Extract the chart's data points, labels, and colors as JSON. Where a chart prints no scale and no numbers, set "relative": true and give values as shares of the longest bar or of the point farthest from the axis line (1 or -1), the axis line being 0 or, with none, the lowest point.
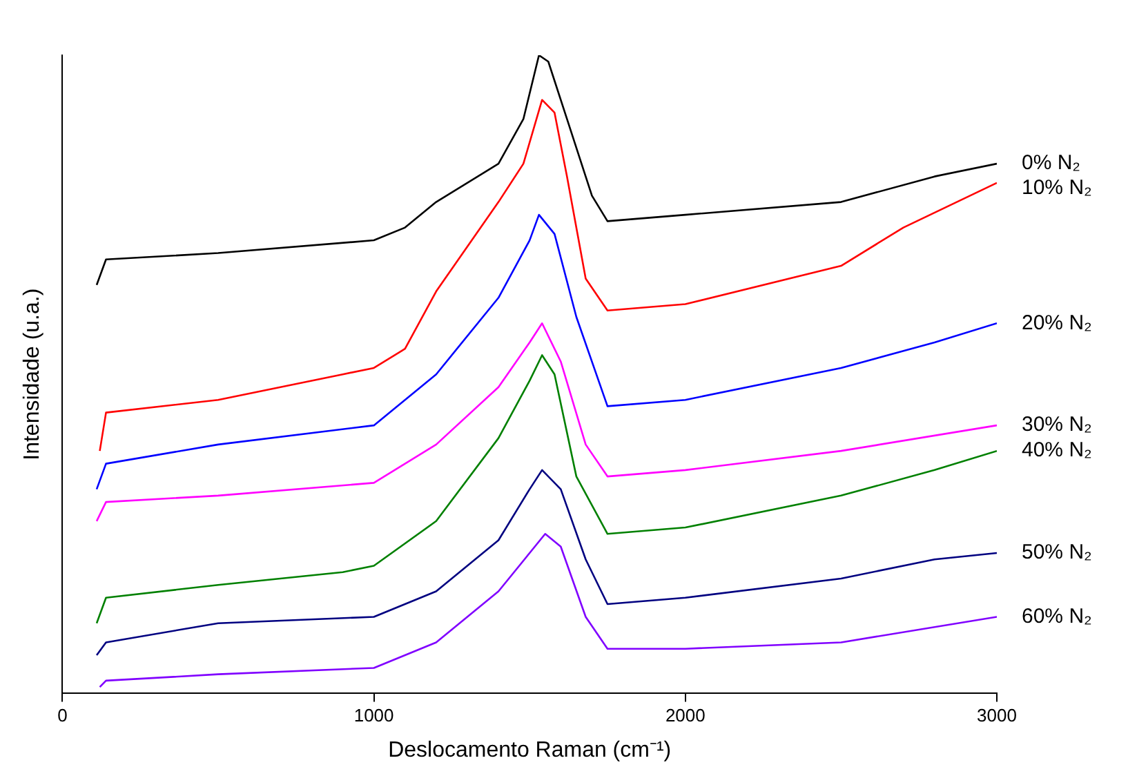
{
  "chart_data": {
    "type": "line",
    "relative": true,
    "xlabel": "Deslocamento Raman (cm⁻¹)",
    "ylabel": "Intensidade (u.a.)",
    "xlim": [
      0,
      3000
    ],
    "xticks": [
      0,
      1000,
      2000,
      3000
    ],
    "grid": false,
    "legend": false,
    "marker": "none",
    "line_style": "solid",
    "series": [
      {
        "name": "0% N₂",
        "color": "#000000",
        "x": [
          110,
          140,
          500,
          1000,
          1100,
          1200,
          1400,
          1480,
          1530,
          1560,
          1620,
          1700,
          1750,
          2000,
          2500,
          2800,
          3000
        ],
        "values": [
          0.64,
          0.68,
          0.69,
          0.71,
          0.73,
          0.77,
          0.83,
          0.9,
          1.0,
          0.99,
          0.9,
          0.78,
          0.74,
          0.75,
          0.77,
          0.81,
          0.83
        ]
      },
      {
        "name": "10% N₂",
        "color": "#ff0000",
        "x": [
          120,
          140,
          500,
          900,
          1000,
          1100,
          1200,
          1400,
          1480,
          1540,
          1580,
          1620,
          1680,
          1750,
          2000,
          2500,
          2700,
          3000
        ],
        "values": [
          0.38,
          0.44,
          0.46,
          0.5,
          0.51,
          0.54,
          0.63,
          0.77,
          0.83,
          0.93,
          0.91,
          0.81,
          0.65,
          0.6,
          0.61,
          0.67,
          0.73,
          0.8
        ]
      },
      {
        "name": "20% N₂",
        "color": "#0000ff",
        "x": [
          110,
          140,
          500,
          1000,
          1200,
          1400,
          1500,
          1530,
          1580,
          1650,
          1750,
          2000,
          2500,
          2800,
          3000
        ],
        "values": [
          0.32,
          0.36,
          0.39,
          0.42,
          0.5,
          0.62,
          0.71,
          0.75,
          0.72,
          0.59,
          0.45,
          0.46,
          0.51,
          0.55,
          0.58
        ]
      },
      {
        "name": "30% N₂",
        "color": "#ff00ff",
        "x": [
          110,
          140,
          500,
          1000,
          1200,
          1400,
          1500,
          1540,
          1600,
          1680,
          1750,
          2000,
          2500,
          3000
        ],
        "values": [
          0.27,
          0.3,
          0.31,
          0.33,
          0.39,
          0.48,
          0.55,
          0.58,
          0.52,
          0.39,
          0.34,
          0.35,
          0.38,
          0.42
        ]
      },
      {
        "name": "40% N₂",
        "color": "#008000",
        "x": [
          110,
          140,
          500,
          900,
          1000,
          1200,
          1400,
          1500,
          1540,
          1580,
          1650,
          1750,
          2000,
          2500,
          2800,
          3000
        ],
        "values": [
          0.11,
          0.15,
          0.17,
          0.19,
          0.2,
          0.27,
          0.4,
          0.49,
          0.53,
          0.5,
          0.34,
          0.25,
          0.26,
          0.31,
          0.35,
          0.38
        ]
      },
      {
        "name": "50% N₂",
        "color": "#000080",
        "x": [
          110,
          140,
          500,
          1000,
          1200,
          1400,
          1500,
          1540,
          1600,
          1680,
          1750,
          2000,
          2500,
          2800,
          3000
        ],
        "values": [
          0.06,
          0.08,
          0.11,
          0.12,
          0.16,
          0.24,
          0.32,
          0.35,
          0.32,
          0.21,
          0.14,
          0.15,
          0.18,
          0.21,
          0.22
        ]
      },
      {
        "name": "60% N₂",
        "color": "#8000ff",
        "x": [
          120,
          140,
          500,
          1000,
          1200,
          1400,
          1500,
          1550,
          1600,
          1680,
          1750,
          2000,
          2500,
          3000
        ],
        "values": [
          0.01,
          0.02,
          0.03,
          0.04,
          0.08,
          0.16,
          0.22,
          0.25,
          0.23,
          0.12,
          0.07,
          0.07,
          0.08,
          0.12
        ]
      }
    ]
  }
}
